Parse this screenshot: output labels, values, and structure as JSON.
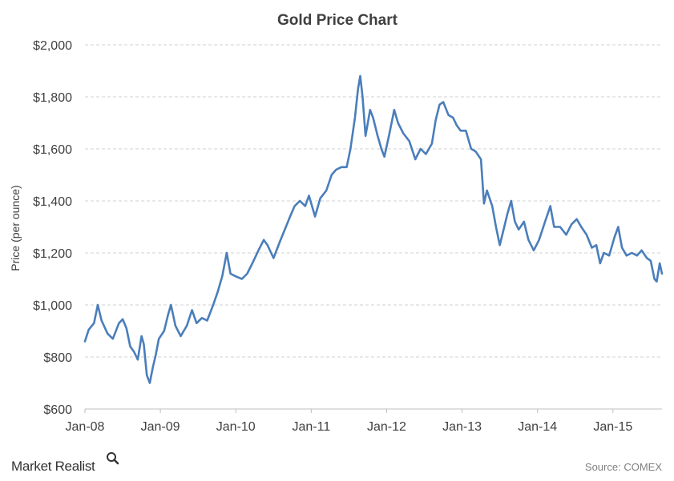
{
  "chart_data": {
    "type": "line",
    "title": "Gold Price Chart",
    "xlabel": "",
    "ylabel": "Price (per ounce)",
    "ylim": [
      600,
      2000
    ],
    "y_ticks": [
      600,
      800,
      1000,
      1200,
      1400,
      1600,
      1800,
      2000
    ],
    "y_tick_labels": [
      "$600",
      "$800",
      "$1,000",
      "$1,200",
      "$1,400",
      "$1,600",
      "$1,800",
      "$2,000"
    ],
    "x_tick_labels": [
      "Jan-08",
      "Jan-09",
      "Jan-10",
      "Jan-11",
      "Jan-12",
      "Jan-13",
      "Jan-14",
      "Jan-15"
    ],
    "x_tick_values": [
      2008.0,
      2009.0,
      2010.0,
      2011.0,
      2012.0,
      2013.0,
      2014.0,
      2015.0
    ],
    "xlim": [
      2008.0,
      2015.65
    ],
    "grid": "horizontal-dashed",
    "series": [
      {
        "color": "#4a7ebb",
        "points": [
          [
            2008.0,
            860
          ],
          [
            2008.05,
            905
          ],
          [
            2008.12,
            930
          ],
          [
            2008.17,
            1000
          ],
          [
            2008.22,
            940
          ],
          [
            2008.3,
            890
          ],
          [
            2008.37,
            870
          ],
          [
            2008.45,
            930
          ],
          [
            2008.5,
            945
          ],
          [
            2008.55,
            910
          ],
          [
            2008.6,
            840
          ],
          [
            2008.65,
            820
          ],
          [
            2008.7,
            790
          ],
          [
            2008.75,
            880
          ],
          [
            2008.78,
            850
          ],
          [
            2008.82,
            730
          ],
          [
            2008.86,
            700
          ],
          [
            2008.9,
            760
          ],
          [
            2008.94,
            810
          ],
          [
            2008.98,
            870
          ],
          [
            2009.05,
            900
          ],
          [
            2009.1,
            960
          ],
          [
            2009.14,
            1000
          ],
          [
            2009.2,
            920
          ],
          [
            2009.27,
            880
          ],
          [
            2009.35,
            920
          ],
          [
            2009.42,
            980
          ],
          [
            2009.48,
            930
          ],
          [
            2009.55,
            950
          ],
          [
            2009.62,
            940
          ],
          [
            2009.7,
            1000
          ],
          [
            2009.76,
            1050
          ],
          [
            2009.82,
            1110
          ],
          [
            2009.88,
            1200
          ],
          [
            2009.93,
            1120
          ],
          [
            2010.0,
            1110
          ],
          [
            2010.08,
            1100
          ],
          [
            2010.15,
            1120
          ],
          [
            2010.22,
            1160
          ],
          [
            2010.3,
            1210
          ],
          [
            2010.37,
            1250
          ],
          [
            2010.42,
            1230
          ],
          [
            2010.5,
            1180
          ],
          [
            2010.58,
            1240
          ],
          [
            2010.65,
            1290
          ],
          [
            2010.72,
            1340
          ],
          [
            2010.78,
            1380
          ],
          [
            2010.85,
            1400
          ],
          [
            2010.92,
            1380
          ],
          [
            2010.97,
            1420
          ],
          [
            2011.05,
            1340
          ],
          [
            2011.12,
            1410
          ],
          [
            2011.2,
            1440
          ],
          [
            2011.27,
            1500
          ],
          [
            2011.33,
            1520
          ],
          [
            2011.4,
            1530
          ],
          [
            2011.47,
            1530
          ],
          [
            2011.52,
            1600
          ],
          [
            2011.58,
            1720
          ],
          [
            2011.62,
            1830
          ],
          [
            2011.65,
            1880
          ],
          [
            2011.68,
            1800
          ],
          [
            2011.72,
            1650
          ],
          [
            2011.78,
            1750
          ],
          [
            2011.82,
            1720
          ],
          [
            2011.88,
            1650
          ],
          [
            2011.93,
            1600
          ],
          [
            2011.97,
            1570
          ],
          [
            2012.03,
            1650
          ],
          [
            2012.1,
            1750
          ],
          [
            2012.15,
            1700
          ],
          [
            2012.22,
            1660
          ],
          [
            2012.3,
            1630
          ],
          [
            2012.38,
            1560
          ],
          [
            2012.45,
            1600
          ],
          [
            2012.52,
            1580
          ],
          [
            2012.6,
            1620
          ],
          [
            2012.65,
            1710
          ],
          [
            2012.7,
            1770
          ],
          [
            2012.75,
            1780
          ],
          [
            2012.82,
            1730
          ],
          [
            2012.88,
            1720
          ],
          [
            2012.93,
            1690
          ],
          [
            2012.98,
            1670
          ],
          [
            2013.05,
            1670
          ],
          [
            2013.12,
            1600
          ],
          [
            2013.18,
            1590
          ],
          [
            2013.25,
            1560
          ],
          [
            2013.29,
            1390
          ],
          [
            2013.33,
            1440
          ],
          [
            2013.4,
            1380
          ],
          [
            2013.45,
            1300
          ],
          [
            2013.5,
            1230
          ],
          [
            2013.55,
            1290
          ],
          [
            2013.6,
            1350
          ],
          [
            2013.65,
            1400
          ],
          [
            2013.7,
            1320
          ],
          [
            2013.75,
            1290
          ],
          [
            2013.82,
            1320
          ],
          [
            2013.88,
            1250
          ],
          [
            2013.95,
            1210
          ],
          [
            2014.02,
            1250
          ],
          [
            2014.1,
            1320
          ],
          [
            2014.17,
            1380
          ],
          [
            2014.22,
            1300
          ],
          [
            2014.3,
            1300
          ],
          [
            2014.38,
            1270
          ],
          [
            2014.45,
            1310
          ],
          [
            2014.52,
            1330
          ],
          [
            2014.58,
            1300
          ],
          [
            2014.65,
            1270
          ],
          [
            2014.72,
            1220
          ],
          [
            2014.78,
            1230
          ],
          [
            2014.83,
            1160
          ],
          [
            2014.88,
            1200
          ],
          [
            2014.95,
            1190
          ],
          [
            2015.02,
            1260
          ],
          [
            2015.07,
            1300
          ],
          [
            2015.12,
            1220
          ],
          [
            2015.18,
            1190
          ],
          [
            2015.25,
            1200
          ],
          [
            2015.32,
            1190
          ],
          [
            2015.38,
            1210
          ],
          [
            2015.45,
            1180
          ],
          [
            2015.5,
            1170
          ],
          [
            2015.55,
            1100
          ],
          [
            2015.58,
            1090
          ],
          [
            2015.62,
            1160
          ],
          [
            2015.65,
            1120
          ]
        ]
      }
    ]
  },
  "brand": {
    "name": "Market Realist",
    "icon": "magnifier-icon"
  },
  "source_note": "Source: COMEX"
}
